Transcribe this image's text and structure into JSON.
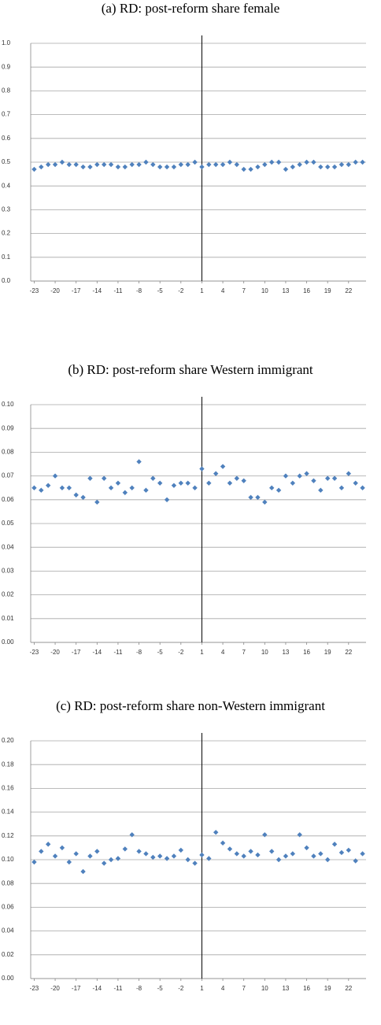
{
  "chart_data": [
    {
      "type": "scatter",
      "title": "(a) RD: post-reform share female",
      "color": "#4f81bd",
      "grid": true,
      "categories": [
        "-23",
        null,
        null,
        "-20",
        null,
        null,
        "-17",
        null,
        null,
        "-14",
        null,
        null,
        "-11",
        null,
        null,
        "-8",
        null,
        null,
        "-5",
        null,
        null,
        "-2",
        null,
        null,
        "1",
        null,
        null,
        "4",
        null,
        null,
        "7",
        null,
        null,
        "10",
        null,
        null,
        "13",
        null,
        null,
        "16",
        null,
        null,
        "19",
        null,
        null,
        "22",
        null,
        null
      ],
      "values": [
        0.47,
        0.48,
        0.49,
        0.49,
        0.5,
        0.49,
        0.49,
        0.48,
        0.48,
        0.49,
        0.49,
        0.49,
        0.48,
        0.48,
        0.49,
        0.49,
        0.5,
        0.49,
        0.48,
        0.48,
        0.48,
        0.49,
        0.49,
        0.5,
        0.48,
        0.49,
        0.49,
        0.49,
        0.5,
        0.49,
        0.47,
        0.47,
        0.48,
        0.49,
        0.5,
        0.5,
        0.47,
        0.48,
        0.49,
        0.5,
        0.5,
        0.48,
        0.48,
        0.48,
        0.49,
        0.49,
        0.5,
        0.5
      ],
      "ylim": [
        0,
        1
      ],
      "yticks": [
        {
          "value": 0,
          "label": "0.0"
        },
        0.1,
        0.2,
        0.3,
        0.4,
        0.5,
        0.6,
        0.7,
        0.8,
        0.9,
        {
          "value": 1,
          "label": "1.0"
        }
      ]
    },
    {
      "type": "scatter",
      "title": "(b) RD: post-reform share Western immigrant",
      "color": "#4f81bd",
      "grid": true,
      "categories": [
        "-23",
        null,
        null,
        "-20",
        null,
        null,
        "-17",
        null,
        null,
        "-14",
        null,
        null,
        "-11",
        null,
        null,
        "-8",
        null,
        null,
        "-5",
        null,
        null,
        "-2",
        null,
        null,
        "1",
        null,
        null,
        "4",
        null,
        null,
        "7",
        null,
        null,
        "10",
        null,
        null,
        "13",
        null,
        null,
        "16",
        null,
        null,
        "19",
        null,
        null,
        "22",
        null,
        null
      ],
      "values": [
        0.065,
        0.064,
        0.066,
        0.07,
        0.065,
        0.065,
        0.062,
        0.061,
        0.069,
        0.059,
        0.069,
        0.065,
        0.067,
        0.063,
        0.065,
        0.076,
        0.064,
        0.069,
        0.067,
        0.06,
        0.066,
        0.067,
        0.067,
        0.065,
        0.073,
        0.067,
        0.071,
        0.074,
        0.067,
        0.069,
        0.068,
        0.061,
        0.061,
        0.059,
        0.065,
        0.064,
        0.07,
        0.067,
        0.07,
        0.071,
        0.068,
        0.064,
        0.069,
        0.069,
        0.065,
        0.071,
        0.067,
        0.065
      ],
      "ylim": [
        0,
        0.1
      ],
      "yticks": [
        {
          "value": 0,
          "label": "0.00"
        },
        0.01,
        0.02,
        0.03,
        0.04,
        0.05,
        0.06,
        0.07,
        0.08,
        0.09,
        {
          "value": 0.1,
          "label": "0.10"
        }
      ]
    },
    {
      "type": "scatter",
      "title": "(c) RD: post-reform share non-Western immigrant",
      "color": "#4f81bd",
      "grid": true,
      "categories": [
        "-23",
        null,
        null,
        "-20",
        null,
        null,
        "-17",
        null,
        null,
        "-14",
        null,
        null,
        "-11",
        null,
        null,
        "-8",
        null,
        null,
        "-5",
        null,
        null,
        "-2",
        null,
        null,
        "1",
        null,
        null,
        "4",
        null,
        null,
        "7",
        null,
        null,
        "10",
        null,
        null,
        "13",
        null,
        null,
        "16",
        null,
        null,
        "19",
        null,
        null,
        "22",
        null,
        null
      ],
      "values": [
        0.098,
        0.107,
        0.113,
        0.103,
        0.11,
        0.098,
        0.105,
        0.09,
        0.103,
        0.107,
        0.097,
        0.1,
        0.101,
        0.109,
        0.121,
        0.107,
        0.105,
        0.102,
        0.103,
        0.101,
        0.103,
        0.108,
        0.1,
        0.097,
        0.104,
        0.101,
        0.123,
        0.114,
        0.109,
        0.105,
        0.103,
        0.107,
        0.104,
        0.121,
        0.107,
        0.1,
        0.103,
        0.105,
        0.121,
        0.11,
        0.103,
        0.105,
        0.1,
        0.113,
        0.106,
        0.108,
        0.099,
        0.105
      ],
      "ylim": [
        0,
        0.2
      ],
      "yticks": [
        {
          "value": 0,
          "label": "0.00"
        },
        0.02,
        0.04,
        0.06,
        0.08,
        {
          "value": 0.1,
          "label": "0.10"
        },
        0.12,
        0.14,
        0.16,
        0.18,
        {
          "value": 0.2,
          "label": "0.20"
        }
      ]
    }
  ]
}
